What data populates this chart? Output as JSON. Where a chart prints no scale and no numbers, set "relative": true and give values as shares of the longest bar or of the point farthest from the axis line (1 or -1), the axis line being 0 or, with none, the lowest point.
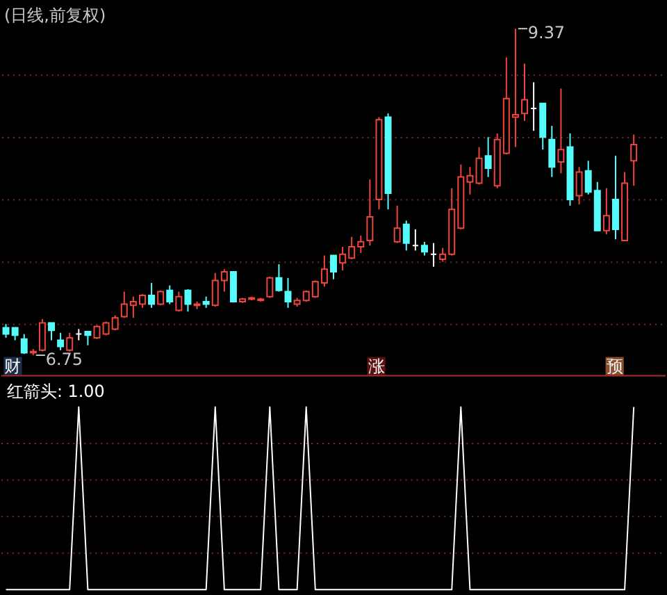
{
  "chart_data": [
    {
      "type": "candlestick",
      "title": "(日线,前复权)",
      "categories": [
        null,
        null,
        null,
        null,
        null,
        null,
        null,
        null,
        null,
        null,
        null,
        null,
        null,
        null,
        null,
        null,
        null,
        null,
        null,
        null,
        null,
        null,
        null,
        null,
        null,
        null,
        null,
        null,
        null,
        null,
        null,
        null,
        null,
        null,
        null,
        null,
        null,
        null,
        null,
        null,
        null,
        null,
        null,
        null,
        null,
        null,
        null,
        null,
        null,
        null,
        null,
        null,
        null,
        null,
        null,
        null,
        null,
        null,
        null,
        null,
        null,
        null,
        null,
        null,
        null,
        null,
        null,
        null,
        null,
        null
      ],
      "ohlc": [
        [
          6.97,
          7.0,
          6.89,
          6.92
        ],
        [
          6.97,
          6.97,
          6.87,
          6.91
        ],
        [
          6.88,
          6.92,
          6.76,
          6.77
        ],
        [
          6.77,
          6.8,
          6.75,
          6.78
        ],
        [
          6.79,
          7.04,
          6.78,
          7.01
        ],
        [
          7.01,
          7.01,
          6.87,
          6.95
        ],
        [
          6.87,
          6.93,
          6.79,
          6.82
        ],
        [
          6.79,
          6.93,
          6.78,
          6.89
        ],
        [
          6.92,
          6.96,
          6.87,
          6.92
        ],
        [
          6.94,
          6.94,
          6.83,
          6.91
        ],
        [
          6.89,
          6.99,
          6.88,
          6.98
        ],
        [
          6.92,
          7.02,
          6.91,
          7.01
        ],
        [
          6.96,
          7.07,
          6.95,
          7.05
        ],
        [
          7.06,
          7.26,
          7.05,
          7.16
        ],
        [
          7.15,
          7.22,
          7.05,
          7.18
        ],
        [
          7.16,
          7.24,
          7.13,
          7.23
        ],
        [
          7.23,
          7.33,
          7.13,
          7.16
        ],
        [
          7.16,
          7.27,
          7.15,
          7.26
        ],
        [
          7.27,
          7.31,
          7.16,
          7.18
        ],
        [
          7.11,
          7.26,
          7.1,
          7.22
        ],
        [
          7.27,
          7.28,
          7.1,
          7.16
        ],
        [
          7.15,
          7.18,
          7.12,
          7.16
        ],
        [
          7.18,
          7.22,
          7.13,
          7.16
        ],
        [
          7.15,
          7.41,
          7.14,
          7.35
        ],
        [
          7.35,
          7.44,
          7.26,
          7.42
        ],
        [
          7.42,
          7.42,
          7.18,
          7.18
        ],
        [
          7.18,
          7.21,
          7.17,
          7.2
        ],
        [
          7.2,
          7.22,
          7.19,
          7.21
        ],
        [
          7.19,
          7.21,
          7.18,
          7.2
        ],
        [
          7.22,
          7.38,
          7.21,
          7.37
        ],
        [
          7.37,
          7.48,
          7.26,
          7.27
        ],
        [
          7.26,
          7.37,
          7.13,
          7.18
        ],
        [
          7.16,
          7.21,
          7.14,
          7.19
        ],
        [
          7.19,
          7.27,
          7.18,
          7.26
        ],
        [
          7.22,
          7.35,
          7.21,
          7.34
        ],
        [
          7.33,
          7.55,
          7.3,
          7.44
        ],
        [
          7.55,
          7.55,
          7.36,
          7.42
        ],
        [
          7.49,
          7.62,
          7.43,
          7.56
        ],
        [
          7.53,
          7.7,
          7.52,
          7.62
        ],
        [
          7.62,
          7.71,
          7.57,
          7.66
        ],
        [
          7.67,
          8.16,
          7.63,
          7.86
        ],
        [
          8.0,
          8.66,
          7.92,
          8.64
        ],
        [
          8.66,
          8.69,
          7.92,
          8.05
        ],
        [
          7.66,
          7.95,
          7.65,
          7.77
        ],
        [
          7.8,
          7.83,
          7.59,
          7.65
        ],
        [
          7.63,
          7.76,
          7.59,
          7.63
        ],
        [
          7.63,
          7.66,
          7.55,
          7.58
        ],
        [
          7.56,
          7.65,
          7.46,
          7.56
        ],
        [
          7.52,
          7.61,
          7.5,
          7.56
        ],
        [
          7.56,
          8.09,
          7.55,
          7.92
        ],
        [
          7.77,
          8.28,
          7.76,
          8.18
        ],
        [
          8.14,
          8.26,
          8.04,
          8.19
        ],
        [
          8.13,
          8.42,
          8.12,
          8.33
        ],
        [
          8.35,
          8.5,
          8.18,
          8.25
        ],
        [
          8.11,
          8.53,
          8.09,
          8.48
        ],
        [
          8.37,
          9.14,
          8.36,
          8.81
        ],
        [
          8.66,
          9.37,
          8.42,
          8.68
        ],
        [
          8.69,
          9.09,
          8.63,
          8.8
        ],
        [
          8.73,
          8.94,
          8.55,
          8.73
        ],
        [
          8.77,
          8.77,
          8.4,
          8.5
        ],
        [
          8.48,
          8.59,
          8.18,
          8.26
        ],
        [
          8.3,
          8.89,
          8.21,
          8.4
        ],
        [
          8.42,
          8.53,
          7.95,
          8.0
        ],
        [
          8.03,
          8.26,
          7.96,
          8.22
        ],
        [
          8.23,
          8.31,
          8.04,
          8.06
        ],
        [
          8.07,
          8.14,
          7.75,
          7.75
        ],
        [
          7.75,
          8.09,
          7.72,
          7.87
        ],
        [
          8.0,
          8.35,
          7.68,
          7.76
        ],
        [
          7.67,
          8.22,
          7.67,
          8.13
        ],
        [
          8.31,
          8.52,
          8.11,
          8.44
        ]
      ],
      "colors": [
        "#54fcfc",
        "#54fcfc",
        "#54fcfc",
        "#f0453c",
        "#f0453c",
        "#54fcfc",
        "#54fcfc",
        "#f0453c",
        "#ffffff",
        "#54fcfc",
        "#f0453c",
        "#f0453c",
        "#f0453c",
        "#f0453c",
        "#f0453c",
        "#f0453c",
        "#54fcfc",
        "#f0453c",
        "#54fcfc",
        "#f0453c",
        "#54fcfc",
        "#f0453c",
        "#54fcfc",
        "#f0453c",
        "#f0453c",
        "#54fcfc",
        "#f0453c",
        "#f0453c",
        "#f0453c",
        "#f0453c",
        "#54fcfc",
        "#54fcfc",
        "#f0453c",
        "#f0453c",
        "#f0453c",
        "#f0453c",
        "#54fcfc",
        "#f0453c",
        "#f0453c",
        "#f0453c",
        "#f0453c",
        "#f0453c",
        "#54fcfc",
        "#f0453c",
        "#54fcfc",
        "#ffffff",
        "#54fcfc",
        "#ffffff",
        "#f0453c",
        "#f0453c",
        "#f0453c",
        "#f0453c",
        "#f0453c",
        "#54fcfc",
        "#f0453c",
        "#f0453c",
        "#f0453c",
        "#f0453c",
        "#ffffff",
        "#54fcfc",
        "#54fcfc",
        "#f0453c",
        "#54fcfc",
        "#f0453c",
        "#54fcfc",
        "#54fcfc",
        "#f0453c",
        "#54fcfc",
        "#f0453c",
        "#f0453c"
      ],
      "ylim": [
        6.58,
        9.59
      ],
      "yticks": [
        {
          "value": 7,
          "label": null
        },
        {
          "value": 7.5,
          "label": null
        },
        {
          "value": 8,
          "label": null
        },
        {
          "value": 8.5,
          "label": null
        },
        {
          "value": 9,
          "label": null
        }
      ],
      "grid": "y",
      "tick_labels": false,
      "annotations": [
        "9.37",
        "6.75",
        "财",
        "涨",
        "预"
      ]
    },
    {
      "type": "line",
      "relative": true,
      "categories": [
        null,
        null,
        null,
        null,
        null,
        null,
        null,
        null,
        null,
        null,
        null,
        null,
        null,
        null,
        null,
        null,
        null,
        null,
        null,
        null,
        null,
        null,
        null,
        null,
        null,
        null,
        null,
        null,
        null,
        null,
        null,
        null,
        null,
        null,
        null,
        null,
        null,
        null,
        null,
        null,
        null,
        null,
        null,
        null,
        null,
        null,
        null,
        null,
        null,
        null,
        null,
        null,
        null,
        null,
        null,
        null,
        null,
        null,
        null,
        null,
        null,
        null,
        null,
        null,
        null,
        null,
        null,
        null,
        null,
        null
      ],
      "series": [
        {
          "name": "红箭头: 1.00",
          "color": "#ffffff",
          "values": [
            0,
            0,
            0,
            0,
            0,
            0,
            0,
            0,
            1,
            0,
            0,
            0,
            0,
            0,
            0,
            0,
            0,
            0,
            0,
            0,
            0,
            0,
            0,
            1,
            0,
            0,
            0,
            0,
            0,
            1,
            0,
            0,
            0,
            1,
            0,
            0,
            0,
            0,
            0,
            0,
            0,
            0,
            0,
            0,
            0,
            0,
            0,
            0,
            0,
            0,
            1,
            0,
            0,
            0,
            0,
            0,
            0,
            0,
            0,
            0,
            0,
            0,
            0,
            0,
            0,
            0,
            0,
            0,
            0,
            1
          ]
        }
      ],
      "ref_lines": [
        {
          "axis": "y",
          "value": 0.2,
          "color": "#7a2626",
          "line_style": "dotted"
        },
        {
          "axis": "y",
          "value": 0.4,
          "color": "#7a2626",
          "line_style": "dotted"
        },
        {
          "axis": "y",
          "value": 0.6,
          "color": "#7a2626",
          "line_style": "dotted"
        },
        {
          "axis": "y",
          "value": 0.8,
          "color": "#7a2626",
          "line_style": "dotted"
        }
      ],
      "tick_labels": false
    }
  ]
}
